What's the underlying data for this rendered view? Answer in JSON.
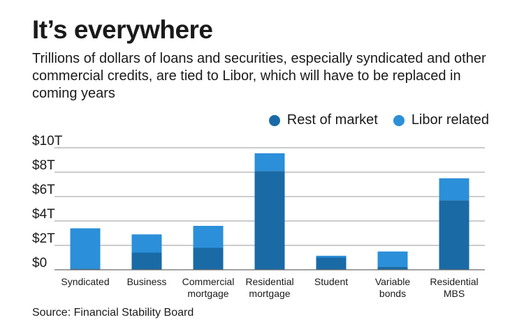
{
  "header": {
    "title": "It’s everywhere",
    "subtitle": "Trillions of dollars of loans and securities, especially syndicated and other commercial credits, are tied to Libor, which will have to be replaced in coming years"
  },
  "footer": {
    "source": "Source: Financial Stability Board"
  },
  "colors": {
    "rest_of_market": "#1a6aa6",
    "libor_related": "#2b8fd9",
    "gridline": "#9a9a9a",
    "baseline": "#6a6a6a"
  },
  "chart_data": {
    "type": "bar",
    "stacked": true,
    "title": "It’s everywhere",
    "categories": [
      [
        "Syndicated"
      ],
      [
        "Business"
      ],
      [
        "Commercial",
        "mortgage"
      ],
      [
        "Residential",
        "mortgage"
      ],
      [
        "Student"
      ],
      [
        "Variable",
        "bonds"
      ],
      [
        "Residential",
        "MBS"
      ]
    ],
    "series": [
      {
        "name": "Rest of market",
        "values": [
          0.1,
          1.4,
          1.8,
          8.1,
          1.0,
          0.25,
          5.7
        ]
      },
      {
        "name": "Libor related",
        "values": [
          3.3,
          1.5,
          1.8,
          1.45,
          0.15,
          1.25,
          1.8
        ]
      }
    ],
    "yticks": [
      "$10T",
      "$8T",
      "$6T",
      "$4T",
      "$2T",
      "$0"
    ],
    "ytick_values": [
      10,
      8,
      6,
      4,
      2,
      0
    ],
    "ylim": [
      0,
      10
    ],
    "grid": true,
    "legend_position": "top-right",
    "xlabel": "",
    "ylabel": ""
  }
}
